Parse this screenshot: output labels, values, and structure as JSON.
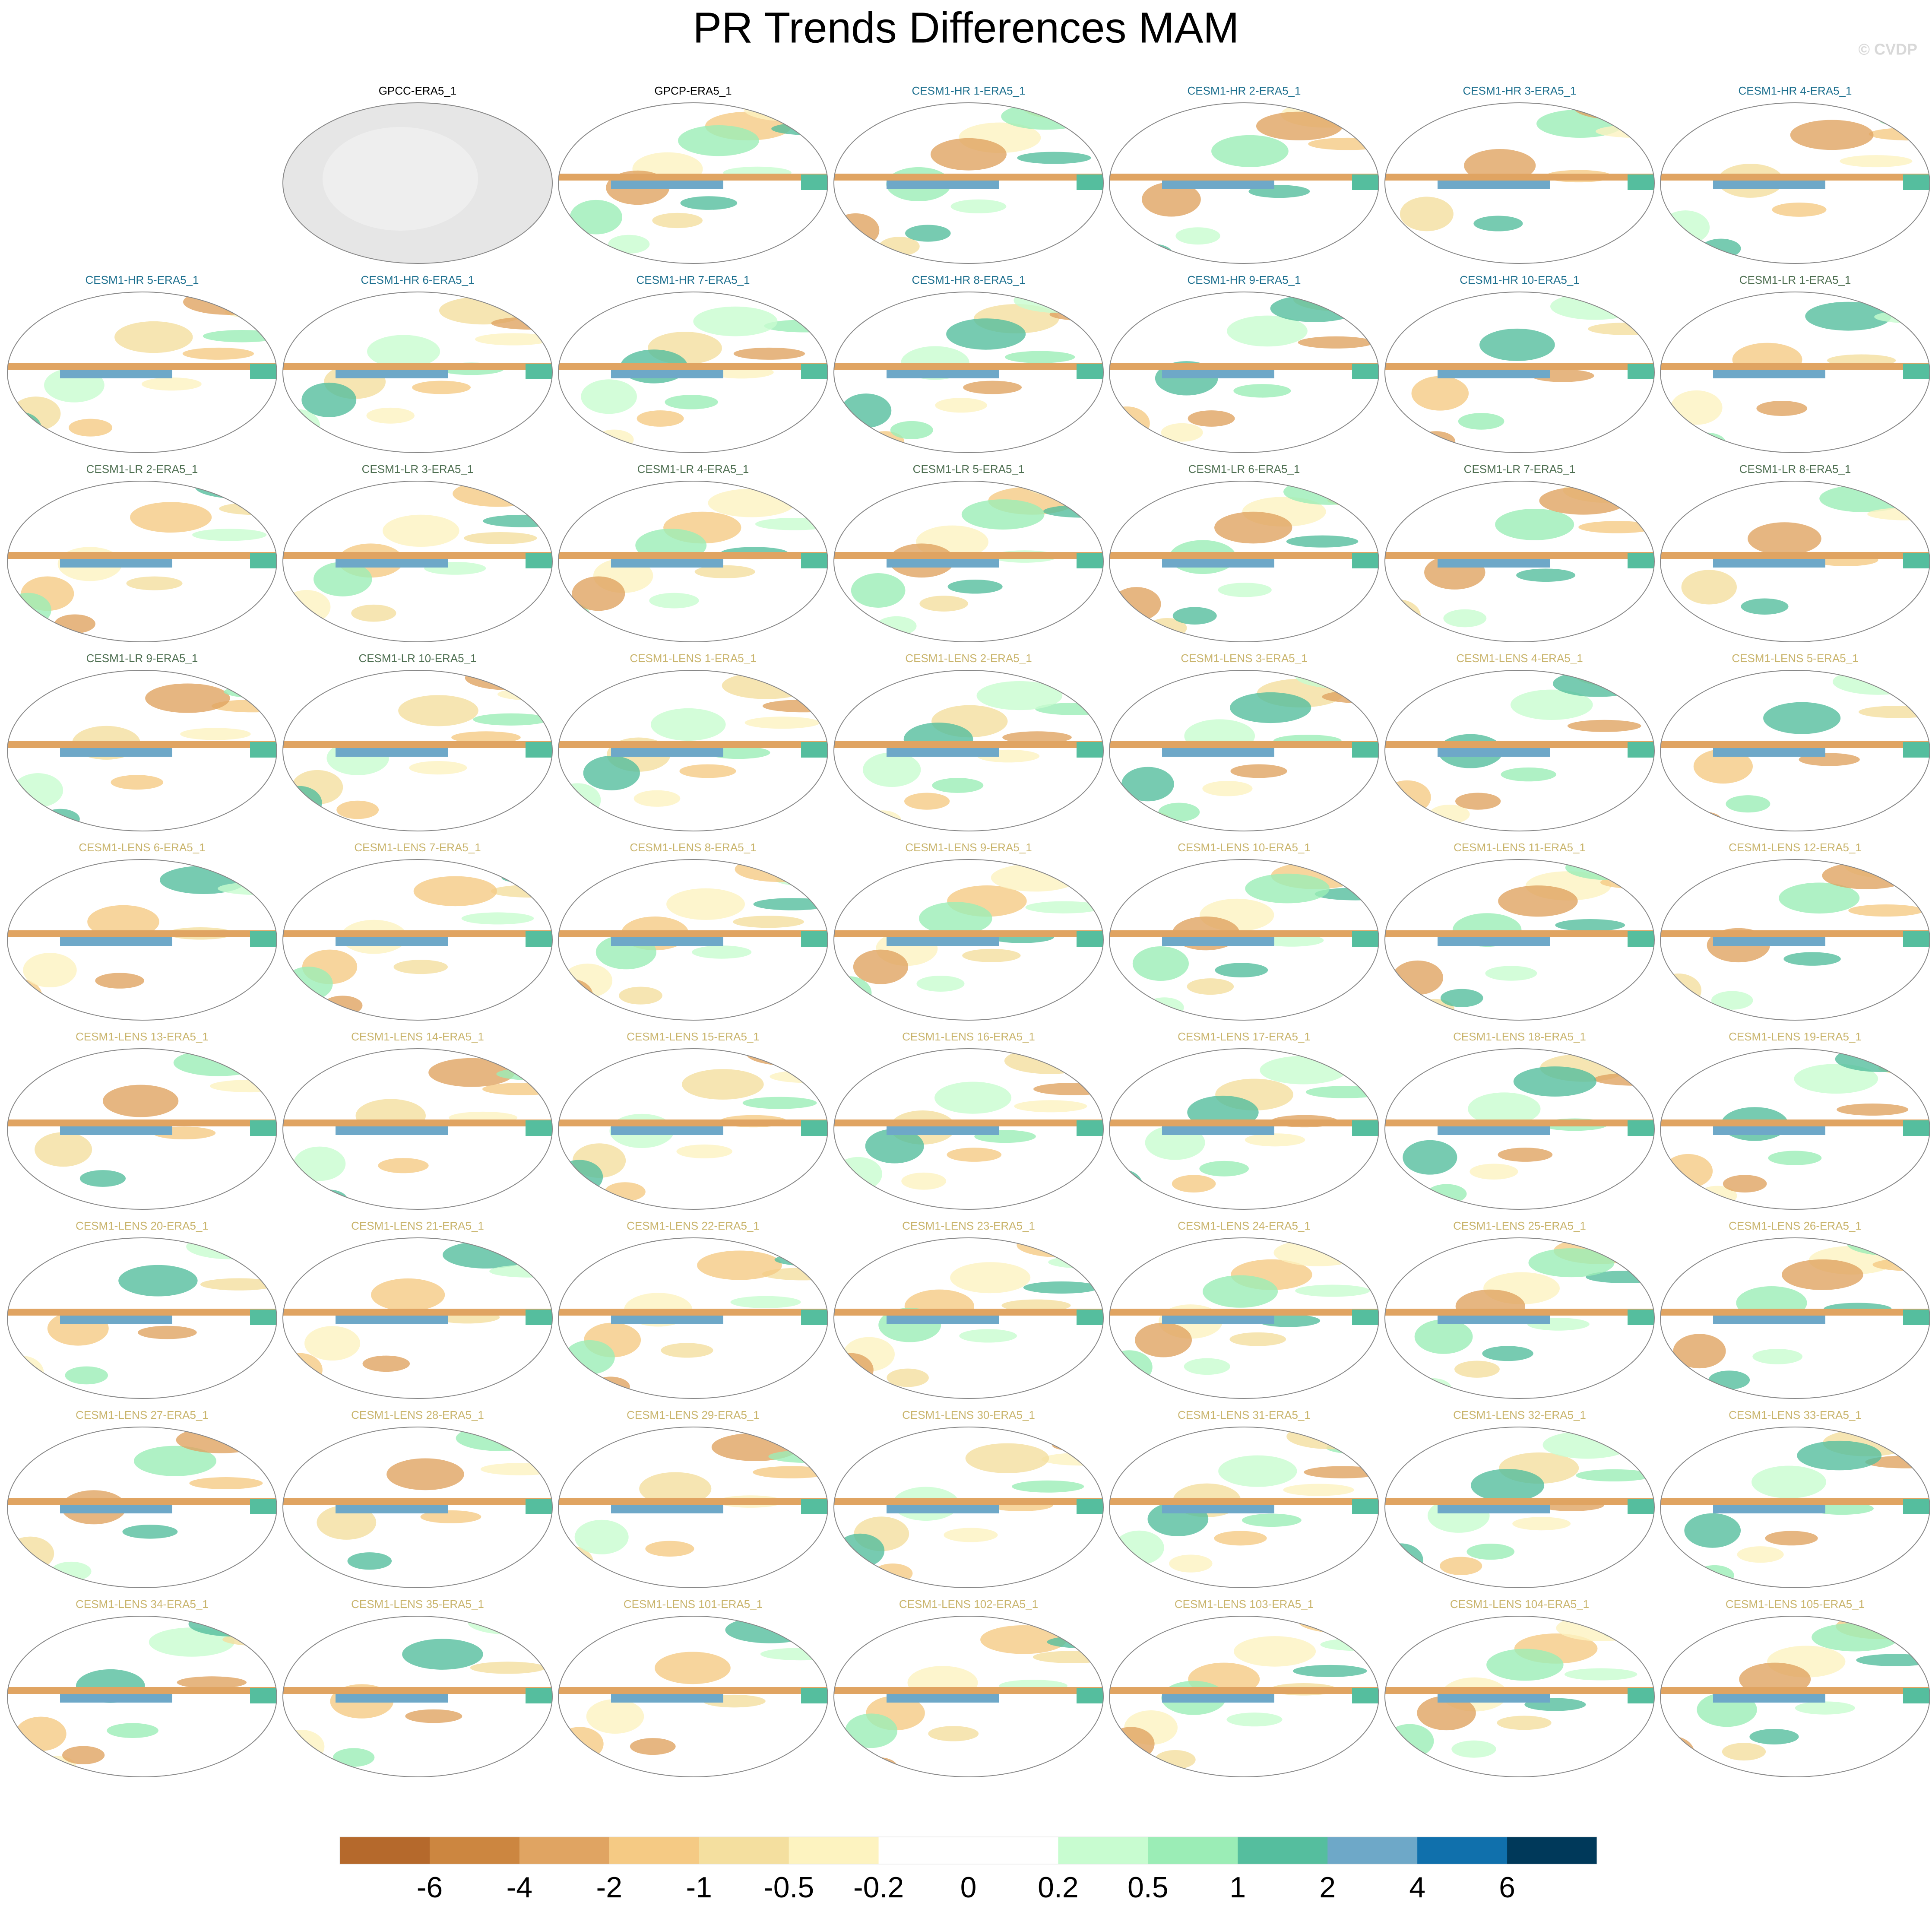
{
  "title": "PR Trends Differences MAM",
  "watermark": "© CVDP",
  "panels": [
    {
      "title": "GPCC-ERA5_1",
      "color": "#000000"
    },
    {
      "title": "GPCP-ERA5_1",
      "color": "#000000"
    },
    {
      "title": "CESM1-HR 1-ERA5_1",
      "color": "#1c6f8e"
    },
    {
      "title": "CESM1-HR 2-ERA5_1",
      "color": "#1c6f8e"
    },
    {
      "title": "CESM1-HR 3-ERA5_1",
      "color": "#1c6f8e"
    },
    {
      "title": "CESM1-HR 4-ERA5_1",
      "color": "#1c6f8e"
    },
    {
      "title": "CESM1-HR 5-ERA5_1",
      "color": "#1c6f8e"
    },
    {
      "title": "CESM1-HR 6-ERA5_1",
      "color": "#1c6f8e"
    },
    {
      "title": "CESM1-HR 7-ERA5_1",
      "color": "#1c6f8e"
    },
    {
      "title": "CESM1-HR 8-ERA5_1",
      "color": "#1c6f8e"
    },
    {
      "title": "CESM1-HR 9-ERA5_1",
      "color": "#1c6f8e"
    },
    {
      "title": "CESM1-HR 10-ERA5_1",
      "color": "#1c6f8e"
    },
    {
      "title": "CESM1-LR 1-ERA5_1",
      "color": "#4d6e50"
    },
    {
      "title": "CESM1-LR 2-ERA5_1",
      "color": "#4d6e50"
    },
    {
      "title": "CESM1-LR 3-ERA5_1",
      "color": "#4d6e50"
    },
    {
      "title": "CESM1-LR 4-ERA5_1",
      "color": "#4d6e50"
    },
    {
      "title": "CESM1-LR 5-ERA5_1",
      "color": "#4d6e50"
    },
    {
      "title": "CESM1-LR 6-ERA5_1",
      "color": "#4d6e50"
    },
    {
      "title": "CESM1-LR 7-ERA5_1",
      "color": "#4d6e50"
    },
    {
      "title": "CESM1-LR 8-ERA5_1",
      "color": "#4d6e50"
    },
    {
      "title": "CESM1-LR 9-ERA5_1",
      "color": "#4d6e50"
    },
    {
      "title": "CESM1-LR 10-ERA5_1",
      "color": "#4d6e50"
    },
    {
      "title": "CESM1-LENS 1-ERA5_1",
      "color": "#c9b46c"
    },
    {
      "title": "CESM1-LENS 2-ERA5_1",
      "color": "#c9b46c"
    },
    {
      "title": "CESM1-LENS 3-ERA5_1",
      "color": "#c9b46c"
    },
    {
      "title": "CESM1-LENS 4-ERA5_1",
      "color": "#c9b46c"
    },
    {
      "title": "CESM1-LENS 5-ERA5_1",
      "color": "#c9b46c"
    },
    {
      "title": "CESM1-LENS 6-ERA5_1",
      "color": "#c9b46c"
    },
    {
      "title": "CESM1-LENS 7-ERA5_1",
      "color": "#c9b46c"
    },
    {
      "title": "CESM1-LENS 8-ERA5_1",
      "color": "#c9b46c"
    },
    {
      "title": "CESM1-LENS 9-ERA5_1",
      "color": "#c9b46c"
    },
    {
      "title": "CESM1-LENS 10-ERA5_1",
      "color": "#c9b46c"
    },
    {
      "title": "CESM1-LENS 11-ERA5_1",
      "color": "#c9b46c"
    },
    {
      "title": "CESM1-LENS 12-ERA5_1",
      "color": "#c9b46c"
    },
    {
      "title": "CESM1-LENS 13-ERA5_1",
      "color": "#c9b46c"
    },
    {
      "title": "CESM1-LENS 14-ERA5_1",
      "color": "#c9b46c"
    },
    {
      "title": "CESM1-LENS 15-ERA5_1",
      "color": "#c9b46c"
    },
    {
      "title": "CESM1-LENS 16-ERA5_1",
      "color": "#c9b46c"
    },
    {
      "title": "CESM1-LENS 17-ERA5_1",
      "color": "#c9b46c"
    },
    {
      "title": "CESM1-LENS 18-ERA5_1",
      "color": "#c9b46c"
    },
    {
      "title": "CESM1-LENS 19-ERA5_1",
      "color": "#c9b46c"
    },
    {
      "title": "CESM1-LENS 20-ERA5_1",
      "color": "#c9b46c"
    },
    {
      "title": "CESM1-LENS 21-ERA5_1",
      "color": "#c9b46c"
    },
    {
      "title": "CESM1-LENS 22-ERA5_1",
      "color": "#c9b46c"
    },
    {
      "title": "CESM1-LENS 23-ERA5_1",
      "color": "#c9b46c"
    },
    {
      "title": "CESM1-LENS 24-ERA5_1",
      "color": "#c9b46c"
    },
    {
      "title": "CESM1-LENS 25-ERA5_1",
      "color": "#c9b46c"
    },
    {
      "title": "CESM1-LENS 26-ERA5_1",
      "color": "#c9b46c"
    },
    {
      "title": "CESM1-LENS 27-ERA5_1",
      "color": "#c9b46c"
    },
    {
      "title": "CESM1-LENS 28-ERA5_1",
      "color": "#c9b46c"
    },
    {
      "title": "CESM1-LENS 29-ERA5_1",
      "color": "#c9b46c"
    },
    {
      "title": "CESM1-LENS 30-ERA5_1",
      "color": "#c9b46c"
    },
    {
      "title": "CESM1-LENS 31-ERA5_1",
      "color": "#c9b46c"
    },
    {
      "title": "CESM1-LENS 32-ERA5_1",
      "color": "#c9b46c"
    },
    {
      "title": "CESM1-LENS 33-ERA5_1",
      "color": "#c9b46c"
    },
    {
      "title": "CESM1-LENS 34-ERA5_1",
      "color": "#c9b46c"
    },
    {
      "title": "CESM1-LENS 35-ERA5_1",
      "color": "#c9b46c"
    },
    {
      "title": "CESM1-LENS 101-ERA5_1",
      "color": "#c9b46c"
    },
    {
      "title": "CESM1-LENS 102-ERA5_1",
      "color": "#c9b46c"
    },
    {
      "title": "CESM1-LENS 103-ERA5_1",
      "color": "#c9b46c"
    },
    {
      "title": "CESM1-LENS 104-ERA5_1",
      "color": "#c9b46c"
    },
    {
      "title": "CESM1-LENS 105-ERA5_1",
      "color": "#c9b46c"
    }
  ],
  "colorbar": {
    "levels": [
      -6,
      -4,
      -2,
      -1,
      -0.5,
      -0.2,
      0,
      0.2,
      0.5,
      1,
      2,
      4,
      6
    ],
    "colors": [
      "#b5692c",
      "#cc8640",
      "#e0a462",
      "#f5ca84",
      "#f4df9f",
      "#fdf3c0",
      "#ffffff",
      "#ffffff",
      "#c8fcd0",
      "#9bedb6",
      "#55be9e",
      "#6ea8c8",
      "#1070ac",
      "#00395a"
    ]
  }
}
